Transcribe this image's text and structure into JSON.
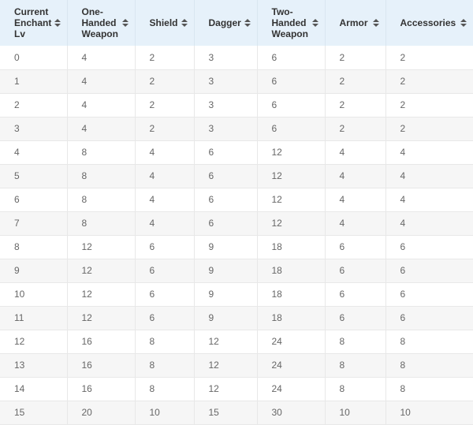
{
  "table": {
    "headers": [
      "Current Enchant Lv",
      "One-Handed Weapon",
      "Shield",
      "Dagger",
      "Two-Handed Weapon",
      "Armor",
      "Accessories"
    ],
    "rows": [
      [
        0,
        4,
        2,
        3,
        6,
        2,
        2
      ],
      [
        1,
        4,
        2,
        3,
        6,
        2,
        2
      ],
      [
        2,
        4,
        2,
        3,
        6,
        2,
        2
      ],
      [
        3,
        4,
        2,
        3,
        6,
        2,
        2
      ],
      [
        4,
        8,
        4,
        6,
        12,
        4,
        4
      ],
      [
        5,
        8,
        4,
        6,
        12,
        4,
        4
      ],
      [
        6,
        8,
        4,
        6,
        12,
        4,
        4
      ],
      [
        7,
        8,
        4,
        6,
        12,
        4,
        4
      ],
      [
        8,
        12,
        6,
        9,
        18,
        6,
        6
      ],
      [
        9,
        12,
        6,
        9,
        18,
        6,
        6
      ],
      [
        10,
        12,
        6,
        9,
        18,
        6,
        6
      ],
      [
        11,
        12,
        6,
        9,
        18,
        6,
        6
      ],
      [
        12,
        16,
        8,
        12,
        24,
        8,
        8
      ],
      [
        13,
        16,
        8,
        12,
        24,
        8,
        8
      ],
      [
        14,
        16,
        8,
        12,
        24,
        8,
        8
      ],
      [
        15,
        20,
        10,
        15,
        30,
        10,
        10
      ]
    ]
  }
}
